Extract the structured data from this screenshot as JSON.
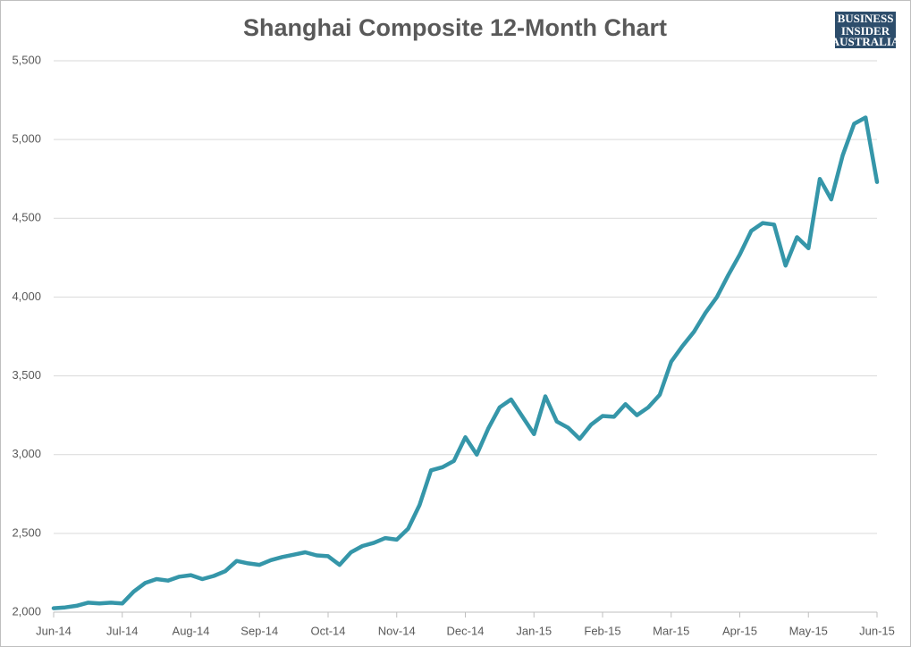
{
  "chart_data": {
    "type": "line",
    "title": "Shanghai Composite 12-Month Chart",
    "logo": [
      "BUSINESS",
      "INSIDER",
      "AUSTRALIA"
    ],
    "categories": [
      "Jun-14",
      null,
      null,
      null,
      null,
      null,
      "Jul-14",
      null,
      null,
      null,
      null,
      null,
      "Aug-14",
      null,
      null,
      null,
      null,
      null,
      "Sep-14",
      null,
      null,
      null,
      null,
      null,
      "Oct-14",
      null,
      null,
      null,
      null,
      null,
      "Nov-14",
      null,
      null,
      null,
      null,
      null,
      "Dec-14",
      null,
      null,
      null,
      null,
      null,
      "Jan-15",
      null,
      null,
      null,
      null,
      null,
      "Feb-15",
      null,
      null,
      null,
      null,
      null,
      "Mar-15",
      null,
      null,
      null,
      null,
      null,
      "Apr-15",
      null,
      null,
      null,
      null,
      null,
      "May-15",
      null,
      null,
      null,
      null,
      null,
      "Jun-15"
    ],
    "values": [
      2025,
      2030,
      2040,
      2060,
      2055,
      2060,
      2055,
      2130,
      2185,
      2210,
      2200,
      2225,
      2235,
      2210,
      2230,
      2260,
      2325,
      2310,
      2300,
      2330,
      2350,
      2365,
      2380,
      2360,
      2355,
      2300,
      2380,
      2420,
      2440,
      2470,
      2460,
      2530,
      2680,
      2900,
      2920,
      2960,
      3110,
      3000,
      3165,
      3300,
      3350,
      3240,
      3130,
      3370,
      3210,
      3170,
      3100,
      3190,
      3245,
      3240,
      3320,
      3250,
      3300,
      3380,
      3590,
      3690,
      3780,
      3900,
      4000,
      4140,
      4270,
      4420,
      4470,
      4460,
      4200,
      4380,
      4310,
      4750,
      4620,
      4900,
      5100,
      5140,
      4730
    ],
    "color": "#3596a9",
    "ylim": [
      2000,
      5500
    ],
    "yticks": [
      {
        "value": 2000,
        "label": "2,000"
      },
      {
        "value": 2500,
        "label": "2,500"
      },
      {
        "value": 3000,
        "label": "3,000"
      },
      {
        "value": 3500,
        "label": "3,500"
      },
      {
        "value": 4000,
        "label": "4,000"
      },
      {
        "value": 4500,
        "label": "4,500"
      },
      {
        "value": 5000,
        "label": "5,000"
      },
      {
        "value": 5500,
        "label": "5,500"
      }
    ],
    "grid": true
  }
}
